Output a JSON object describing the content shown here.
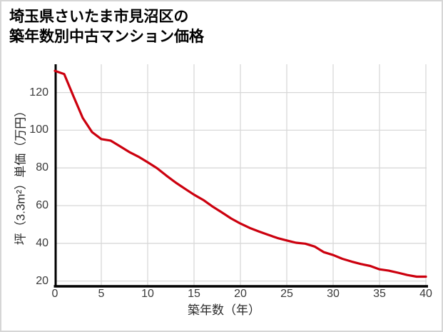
{
  "title": {
    "line1": "埼玉県さいたま市見沼区の",
    "line2": "築年数別中古マンション価格"
  },
  "chart_data": {
    "type": "line",
    "title": "埼玉県さいたま市見沼区の築年数別中古マンション価格",
    "xlabel": "築年数（年）",
    "ylabel": "坪（3.3m²）単価（万円）",
    "x": [
      0,
      1,
      2,
      3,
      4,
      5,
      6,
      7,
      8,
      9,
      10,
      11,
      12,
      13,
      14,
      15,
      16,
      17,
      18,
      19,
      20,
      21,
      22,
      23,
      24,
      25,
      26,
      27,
      28,
      29,
      30,
      31,
      32,
      33,
      34,
      35,
      36,
      37,
      38,
      39,
      40
    ],
    "values": [
      131.5,
      129.8,
      118.0,
      106.5,
      99.0,
      95.3,
      94.5,
      91.5,
      88.5,
      86.0,
      83.0,
      79.9,
      76.0,
      72.3,
      69.0,
      65.8,
      63.0,
      59.5,
      56.4,
      53.2,
      50.5,
      48.2,
      46.3,
      44.5,
      42.8,
      41.5,
      40.3,
      39.8,
      38.3,
      35.3,
      33.8,
      31.8,
      30.3,
      29.0,
      28.0,
      26.2,
      25.5,
      24.4,
      23.2,
      22.3,
      22.3
    ],
    "x_ticks": [
      0,
      5,
      10,
      15,
      20,
      25,
      30,
      35,
      40
    ],
    "y_ticks": [
      20,
      40,
      60,
      80,
      100,
      120
    ],
    "xlim": [
      0,
      40
    ],
    "ylim": [
      17.2,
      135
    ],
    "grid": true,
    "legend": "none",
    "line_color": "#cc000e",
    "grid_color": "#d8d8d8",
    "axis_color": "#000000",
    "tick_label_color": "#3a3a3a"
  }
}
